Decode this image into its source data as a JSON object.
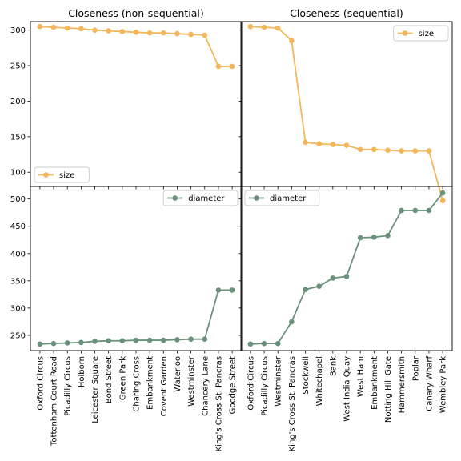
{
  "chart_data": [
    {
      "type": "line",
      "title": "Closeness (non-sequential)",
      "series": [
        {
          "name": "size",
          "color": "#f4b65a",
          "values": [
            305,
            304,
            303,
            302,
            300,
            299,
            298,
            297,
            296,
            296,
            295,
            294,
            293,
            249,
            249
          ]
        },
        {
          "name": "diameter",
          "color": "#6b917d",
          "values": [
            234,
            235,
            236,
            237,
            239,
            240,
            240,
            241,
            241,
            241,
            242,
            243,
            243,
            333,
            333
          ]
        }
      ],
      "categories": [
        "Oxford Circus",
        "Tottenham Court Road",
        "Picadilly Circus",
        "Holborn",
        "Leicester Square",
        "Bond Street",
        "Green Park",
        "Charing Cross",
        "Embankment",
        "Covent Garden",
        "Waterloo",
        "Westminster",
        "Chancery Lane",
        "King's Cross St. Pancras",
        "Goodge Street"
      ],
      "top_ylim": [
        80,
        312
      ],
      "top_yticks": [
        "100",
        "150",
        "200",
        "250",
        "300"
      ],
      "bottom_ylim": [
        222,
        523
      ],
      "bottom_yticks": [
        "250",
        "300",
        "350",
        "400",
        "450",
        "500"
      ],
      "top_legend_loc": "lower left",
      "bottom_legend_loc": "upper right"
    },
    {
      "type": "line",
      "title": "Closeness (sequential)",
      "series": [
        {
          "name": "size",
          "color": "#f4b65a",
          "values": [
            305,
            304,
            303,
            285,
            142,
            140,
            139,
            138,
            132,
            132,
            131,
            130,
            130,
            130,
            60
          ]
        },
        {
          "name": "diameter",
          "color": "#6b917d",
          "values": [
            234,
            235,
            235,
            275,
            334,
            340,
            355,
            358,
            429,
            430,
            433,
            479,
            479,
            479,
            511
          ]
        }
      ],
      "categories": [
        "Oxford Circus",
        "Picadilly Circus",
        "Westminster",
        "King's Cross St. Pancras",
        "Stockwell",
        "Whitechapel",
        "Bank",
        "West India Quay",
        "West Ham",
        "Embankment",
        "Notting Hill Gate",
        "Hammersmith",
        "Poplar",
        "Canary Wharf",
        "Wembley Park"
      ],
      "top_legend_loc": "upper right",
      "bottom_legend_loc": "upper left"
    }
  ]
}
